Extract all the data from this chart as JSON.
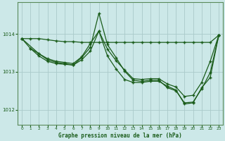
{
  "background_color": "#cce8e8",
  "plot_bg_color": "#cce8e8",
  "line_color": "#1a5c1a",
  "marker_color": "#1a5c1a",
  "grid_color": "#aacaca",
  "xlabel": "Graphe pression niveau de la mer (hPa)",
  "ylim": [
    1011.6,
    1014.85
  ],
  "xlim": [
    -0.5,
    23.5
  ],
  "yticks": [
    1012,
    1013,
    1014
  ],
  "xticks": [
    0,
    1,
    2,
    3,
    4,
    5,
    6,
    7,
    8,
    9,
    10,
    11,
    12,
    13,
    14,
    15,
    16,
    17,
    18,
    19,
    20,
    21,
    22,
    23
  ],
  "series": [
    {
      "x": [
        0,
        1,
        2,
        3,
        4,
        5,
        6,
        7,
        8,
        9,
        10,
        11,
        12,
        13,
        14,
        15,
        16,
        17,
        18,
        19,
        20,
        21,
        22,
        23
      ],
      "y": [
        1013.88,
        1013.88,
        1013.88,
        1013.85,
        1013.82,
        1013.8,
        1013.8,
        1013.78,
        1013.78,
        1013.78,
        1013.78,
        1013.78,
        1013.78,
        1013.78,
        1013.78,
        1013.78,
        1013.78,
        1013.78,
        1013.78,
        1013.78,
        1013.78,
        1013.78,
        1013.78,
        1013.97
      ]
    },
    {
      "x": [
        0,
        1,
        2,
        3,
        4,
        5,
        6,
        7,
        8,
        9,
        10,
        11,
        12,
        13,
        14,
        15,
        16,
        17,
        18,
        19,
        20,
        21,
        22,
        23
      ],
      "y": [
        1013.88,
        1013.62,
        1013.48,
        1013.35,
        1013.28,
        1013.25,
        1013.22,
        1013.4,
        1013.75,
        1014.08,
        1013.6,
        1013.3,
        1013.05,
        1012.82,
        1012.8,
        1012.82,
        1012.82,
        1012.68,
        1012.6,
        1012.35,
        1012.38,
        1012.72,
        1013.28,
        1013.97
      ]
    },
    {
      "x": [
        0,
        2,
        3,
        4,
        5,
        6,
        7,
        8,
        9,
        10,
        11,
        12,
        13,
        14,
        15,
        16,
        17,
        18,
        19,
        20,
        21,
        22,
        23
      ],
      "y": [
        1013.88,
        1013.48,
        1013.32,
        1013.25,
        1013.22,
        1013.18,
        1013.38,
        1013.65,
        1014.55,
        1013.72,
        1013.38,
        1013.02,
        1012.78,
        1012.75,
        1012.78,
        1012.78,
        1012.58,
        1012.5,
        1012.18,
        1012.2,
        1012.55,
        1012.98,
        1013.97
      ]
    },
    {
      "x": [
        1,
        2,
        3,
        4,
        5,
        6,
        7,
        8,
        9,
        10,
        11,
        12,
        13,
        14,
        15,
        16,
        17,
        18,
        19,
        20,
        21,
        22,
        23
      ],
      "y": [
        1013.62,
        1013.42,
        1013.28,
        1013.22,
        1013.2,
        1013.18,
        1013.32,
        1013.55,
        1014.08,
        1013.42,
        1013.08,
        1012.8,
        1012.72,
        1012.72,
        1012.75,
        1012.75,
        1012.62,
        1012.52,
        1012.15,
        1012.18,
        1012.58,
        1012.85,
        1013.97
      ]
    }
  ]
}
